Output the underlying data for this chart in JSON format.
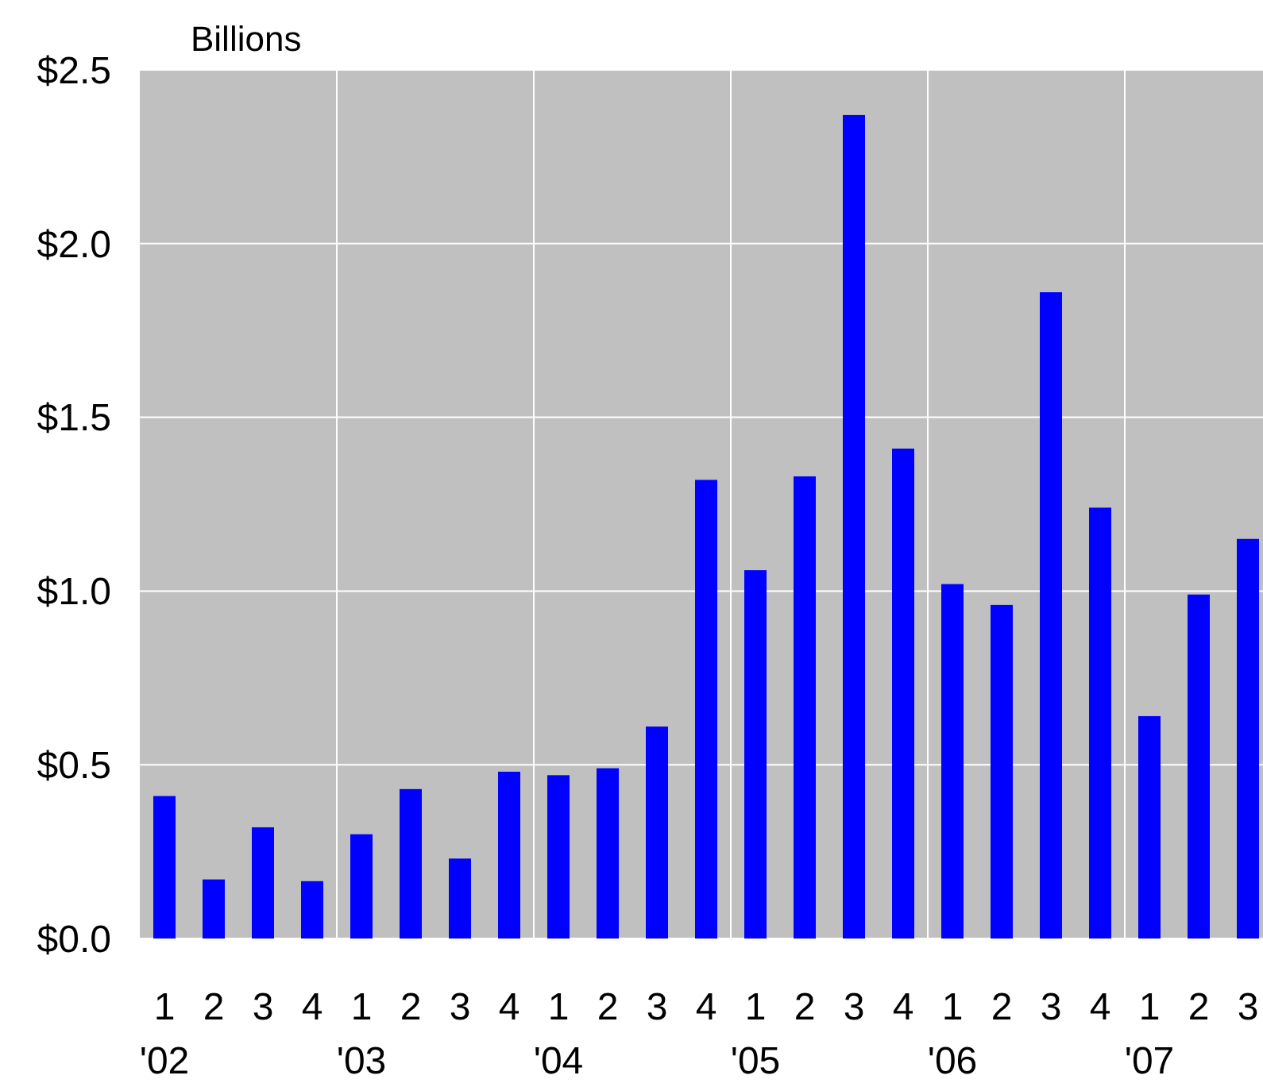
{
  "chart_data": {
    "type": "bar",
    "ylabel": "Billions",
    "categories": [
      "1\n'02",
      "2",
      "3",
      "4",
      "1\n'03",
      "2",
      "3",
      "4",
      "1\n'04",
      "2",
      "3",
      "4",
      "1\n'05",
      "2",
      "3",
      "4",
      "1\n'06",
      "2",
      "3",
      "4",
      "1\n'07",
      "2",
      "3"
    ],
    "values": [
      0.41,
      0.17,
      0.32,
      0.165,
      0.3,
      0.43,
      0.23,
      0.48,
      0.47,
      0.49,
      0.61,
      1.32,
      1.06,
      1.33,
      2.37,
      1.41,
      1.02,
      0.96,
      1.86,
      1.24,
      0.64,
      0.99,
      1.15
    ],
    "color": "#0000ff",
    "ylim": [
      0,
      2.5
    ],
    "yticks": [
      {
        "value": 0,
        "label": "$0.0"
      },
      {
        "value": 0.5,
        "label": "$0.5"
      },
      {
        "value": 1,
        "label": "$1.0"
      },
      {
        "value": 1.5,
        "label": "$1.5"
      },
      {
        "value": 2,
        "label": "$2.0"
      },
      {
        "value": 2.5,
        "label": "$2.5"
      }
    ],
    "grid": true
  }
}
